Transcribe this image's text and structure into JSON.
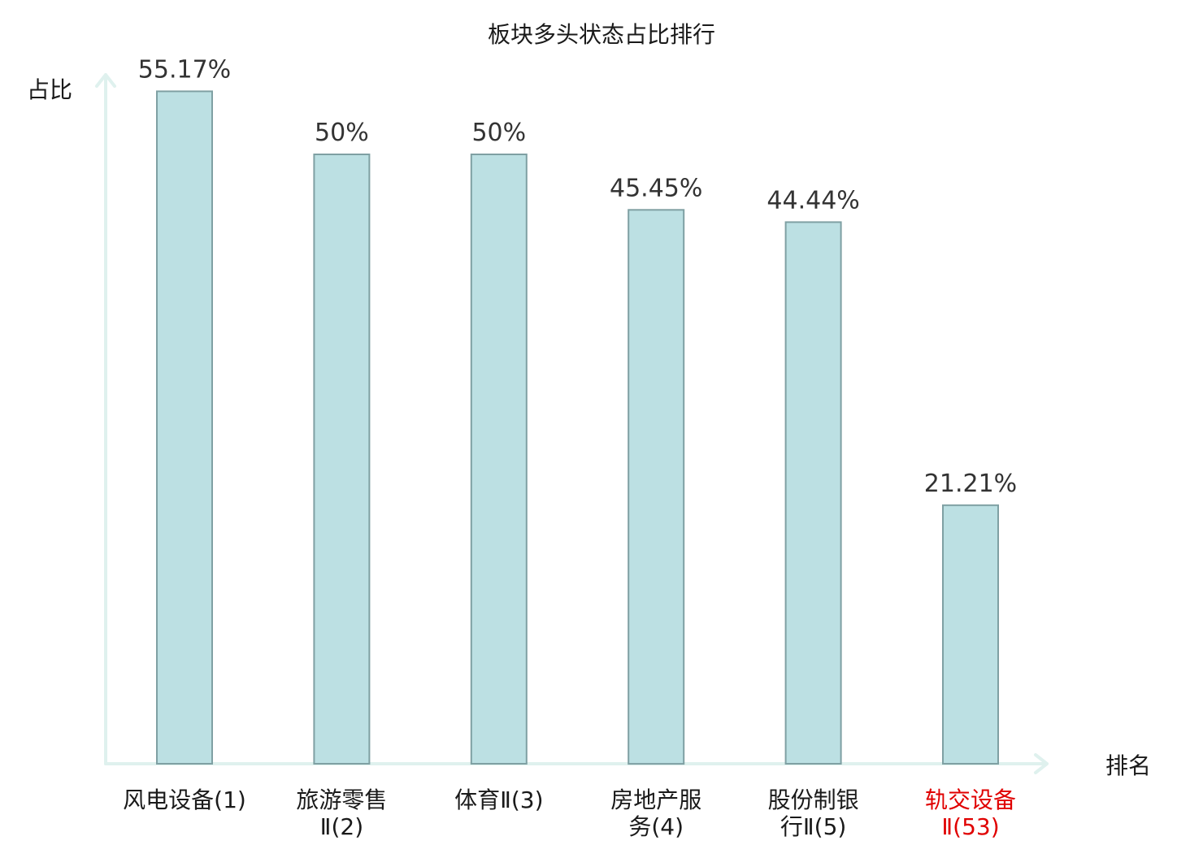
{
  "chart_data": {
    "type": "bar",
    "title": "板块多头状态占比排行",
    "ylabel": "占比",
    "xlabel": "排名",
    "ylim": [
      0,
      60
    ],
    "grid": false,
    "legend": "none",
    "categories": [
      [
        "风电设备(1)"
      ],
      [
        "旅游零售",
        "Ⅱ(2)"
      ],
      [
        "体育Ⅱ(3)"
      ],
      [
        "房地产服",
        "务(4)"
      ],
      [
        "股份制银",
        "行Ⅱ(5)"
      ],
      [
        "轨交设备",
        "Ⅱ(53)"
      ]
    ],
    "values": [
      55.17,
      50,
      50,
      45.45,
      44.44,
      21.21
    ],
    "value_labels": [
      "55.17%",
      "50%",
      "50%",
      "45.45%",
      "44.44%",
      "21.21%"
    ],
    "highlight_index": 5,
    "colors": {
      "bar_fill": "#bce0e3",
      "bar_stroke": "#7fa0a3",
      "axis": "#dff1ee",
      "highlight_text": "#e00000"
    }
  }
}
